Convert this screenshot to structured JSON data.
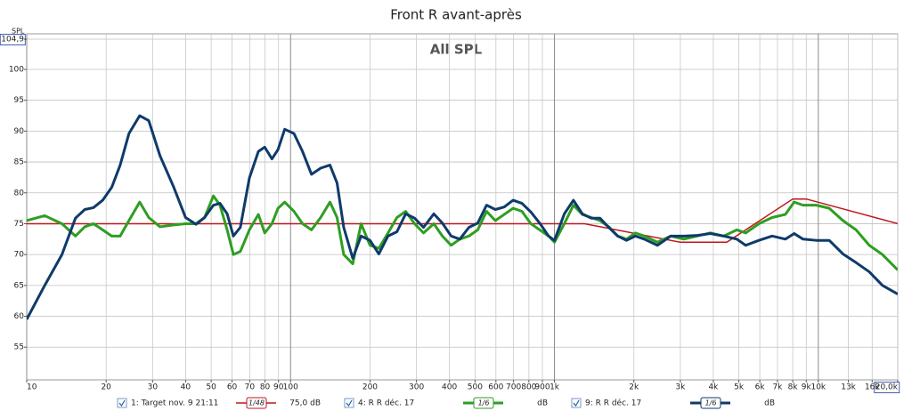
{
  "chart_data": {
    "type": "line",
    "title": "Front R avant-après",
    "subtitle": "All SPL",
    "y_label": "SPL",
    "log_x": true,
    "grid": true,
    "xlim": [
      10,
      20000
    ],
    "ylim": [
      49.7,
      104.9
    ],
    "xticks": [
      10,
      20,
      30,
      40,
      50,
      60,
      70,
      80,
      90,
      100,
      200,
      300,
      400,
      500,
      600,
      700,
      800,
      900,
      {
        "value": 1000,
        "label": "1k"
      },
      {
        "value": 2000,
        "label": "2k"
      },
      {
        "value": 3000,
        "label": "3k"
      },
      {
        "value": 4000,
        "label": "4k"
      },
      {
        "value": 5000,
        "label": "5k"
      },
      {
        "value": 6000,
        "label": "6k"
      },
      {
        "value": 7000,
        "label": "7k"
      },
      {
        "value": 8000,
        "label": "8k"
      },
      {
        "value": 9000,
        "label": "9k"
      },
      {
        "value": 10000,
        "label": "10k"
      },
      {
        "value": 13000,
        "label": "13k"
      },
      {
        "value": 16000,
        "label": "16k"
      },
      {
        "value": 20000,
        "label": "20,0k"
      }
    ],
    "yticks": [
      55,
      60,
      65,
      70,
      75,
      80,
      85,
      90,
      95,
      100,
      {
        "value": 104.9,
        "label": "104,9"
      }
    ],
    "series": [
      {
        "name": "1: Target nov. 9 21:11",
        "color": "#c0161c",
        "smoothing": "1/48",
        "level": "75,0 dB",
        "x": [
          10,
          1300,
          3000,
          4500,
          8000,
          9000,
          20000
        ],
        "values": [
          75,
          75,
          72,
          72,
          79,
          79,
          75
        ]
      },
      {
        "name": "4: R R déc. 17",
        "color": "#2e9e22",
        "smoothing": "1/6",
        "level": "dB",
        "x": [
          10,
          11.7,
          13.6,
          15.3,
          16.6,
          17.9,
          19.4,
          21,
          22.6,
          24.4,
          26.8,
          29,
          32,
          36,
          40,
          43.8,
          47.2,
          51,
          54,
          57.5,
          60.7,
          64.5,
          69.8,
          75.5,
          79.8,
          85,
          89.6,
          95,
          103,
          111,
          120,
          130,
          141,
          150,
          159,
          172,
          185,
          200,
          216,
          234,
          253,
          273,
          295,
          319,
          349,
          376,
          406,
          438,
          474,
          512,
          553,
          597,
          645,
          697,
          753,
          814,
          879,
          950,
          1000,
          1090,
          1180,
          1275,
          1377,
          1487,
          1607,
          1736,
          1875,
          2026,
          2189,
          2457,
          2758,
          3095,
          3473,
          3900,
          4377,
          4912,
          5305,
          5954,
          6683,
          7500,
          8100,
          8750,
          9820,
          11000,
          12400,
          13900,
          15600,
          17500,
          20000
        ],
        "values": [
          75.5,
          76.3,
          75,
          73,
          74.5,
          75,
          74,
          73,
          73,
          75.5,
          78.5,
          76,
          74.5,
          74.8,
          75,
          75,
          76,
          79.5,
          78,
          74,
          70,
          70.5,
          74,
          76.5,
          73.5,
          75,
          77.5,
          78.5,
          77,
          75,
          74,
          76,
          78.5,
          76,
          70,
          68.5,
          75,
          71.5,
          71,
          73.5,
          76,
          77,
          75,
          73.5,
          75,
          73,
          71.5,
          72.5,
          73,
          74,
          77,
          75.5,
          76.5,
          77.5,
          77,
          75,
          74,
          73,
          72,
          75,
          78,
          76.5,
          76,
          75.5,
          74.5,
          73,
          72.5,
          73.5,
          73,
          72,
          73,
          72.5,
          73,
          73.5,
          73,
          74,
          73.5,
          75,
          76,
          76.5,
          78.5,
          78,
          78,
          77.5,
          75.5,
          74,
          71.5,
          70,
          67.5
        ]
      },
      {
        "name": "9: R R déc. 17",
        "color": "#0f3a6b",
        "smoothing": "1/6",
        "level": "dB",
        "x": [
          10,
          11.7,
          13.6,
          15.3,
          16.6,
          17.9,
          19.4,
          21,
          22.6,
          24.4,
          26.8,
          29,
          32,
          36,
          40,
          43.8,
          47.2,
          51,
          54,
          57.5,
          60.7,
          64.5,
          69.8,
          75.5,
          79.8,
          85,
          89.6,
          95,
          103,
          111,
          120,
          130,
          141,
          150,
          159,
          172,
          185,
          200,
          216,
          234,
          253,
          273,
          295,
          319,
          349,
          376,
          406,
          438,
          474,
          512,
          553,
          597,
          645,
          697,
          753,
          814,
          879,
          950,
          1000,
          1090,
          1180,
          1275,
          1377,
          1487,
          1607,
          1736,
          1875,
          2026,
          2189,
          2457,
          2758,
          3095,
          3473,
          3900,
          4377,
          4912,
          5305,
          5954,
          6683,
          7500,
          8100,
          8750,
          9820,
          11000,
          12400,
          13900,
          15600,
          17500,
          20000
        ],
        "values": [
          59.5,
          65,
          70,
          75.9,
          77.3,
          77.6,
          78.8,
          80.9,
          84.5,
          89.6,
          92.5,
          91.7,
          86,
          81,
          76,
          74.9,
          76,
          78,
          78.3,
          76.6,
          73,
          74.4,
          82.4,
          86.7,
          87.4,
          85.5,
          87,
          90.3,
          89.6,
          86.7,
          83,
          84,
          84.5,
          81.6,
          74.4,
          69.4,
          73,
          72.3,
          70.1,
          73,
          73.7,
          76.6,
          75.9,
          74.4,
          76.6,
          75.1,
          73,
          72.5,
          74.4,
          75.1,
          78,
          77.3,
          77.7,
          78.8,
          78.3,
          76.9,
          75.1,
          73,
          72.3,
          76.6,
          78.8,
          76.6,
          75.9,
          75.9,
          74.4,
          73,
          72.3,
          73,
          72.5,
          71.5,
          73,
          73,
          73.1,
          73.4,
          73,
          72.5,
          71.5,
          72.3,
          73,
          72.5,
          73.4,
          72.5,
          72.3,
          72.3,
          70.1,
          68.7,
          67.2,
          65,
          63.6
        ]
      }
    ]
  }
}
